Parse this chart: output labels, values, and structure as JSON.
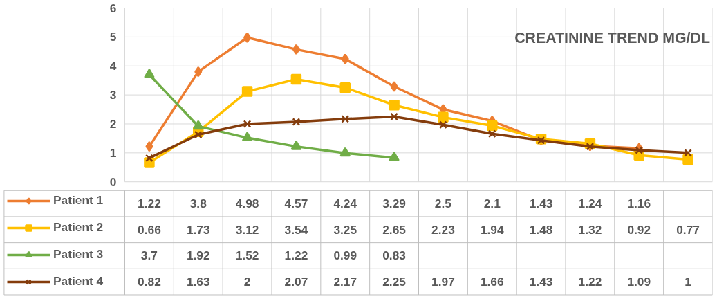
{
  "chart_data": {
    "type": "line",
    "title": "CREATININE TREND MG/DL",
    "categories": [
      null,
      null,
      null,
      null,
      null,
      null,
      null,
      null,
      null,
      null,
      null,
      null
    ],
    "series": [
      {
        "name": "Patient 1",
        "color": "#ed7d31",
        "marker": "diamond",
        "values": [
          1.22,
          3.8,
          4.98,
          4.57,
          4.24,
          3.29,
          2.5,
          2.1,
          1.43,
          1.24,
          1.16,
          null
        ]
      },
      {
        "name": "Patient 2",
        "color": "#ffc000",
        "marker": "square",
        "values": [
          0.66,
          1.73,
          3.12,
          3.54,
          3.25,
          2.65,
          2.23,
          1.94,
          1.48,
          1.32,
          0.92,
          0.77
        ]
      },
      {
        "name": "Patient 3",
        "color": "#70ad47",
        "marker": "triangle",
        "values": [
          3.7,
          1.92,
          1.52,
          1.22,
          0.99,
          0.83,
          null,
          null,
          null,
          null,
          null,
          null
        ]
      },
      {
        "name": "Patient 4",
        "color": "#843c0c",
        "marker": "cross",
        "values": [
          0.82,
          1.63,
          2,
          2.07,
          2.17,
          2.25,
          1.97,
          1.66,
          1.43,
          1.22,
          1.09,
          1
        ]
      }
    ],
    "ylim": [
      0,
      6
    ],
    "yticks": [
      0,
      1,
      2,
      3,
      4,
      5,
      6
    ],
    "grid": true,
    "legend": "bottom left",
    "data_labels": true,
    "line_style": "solid"
  }
}
